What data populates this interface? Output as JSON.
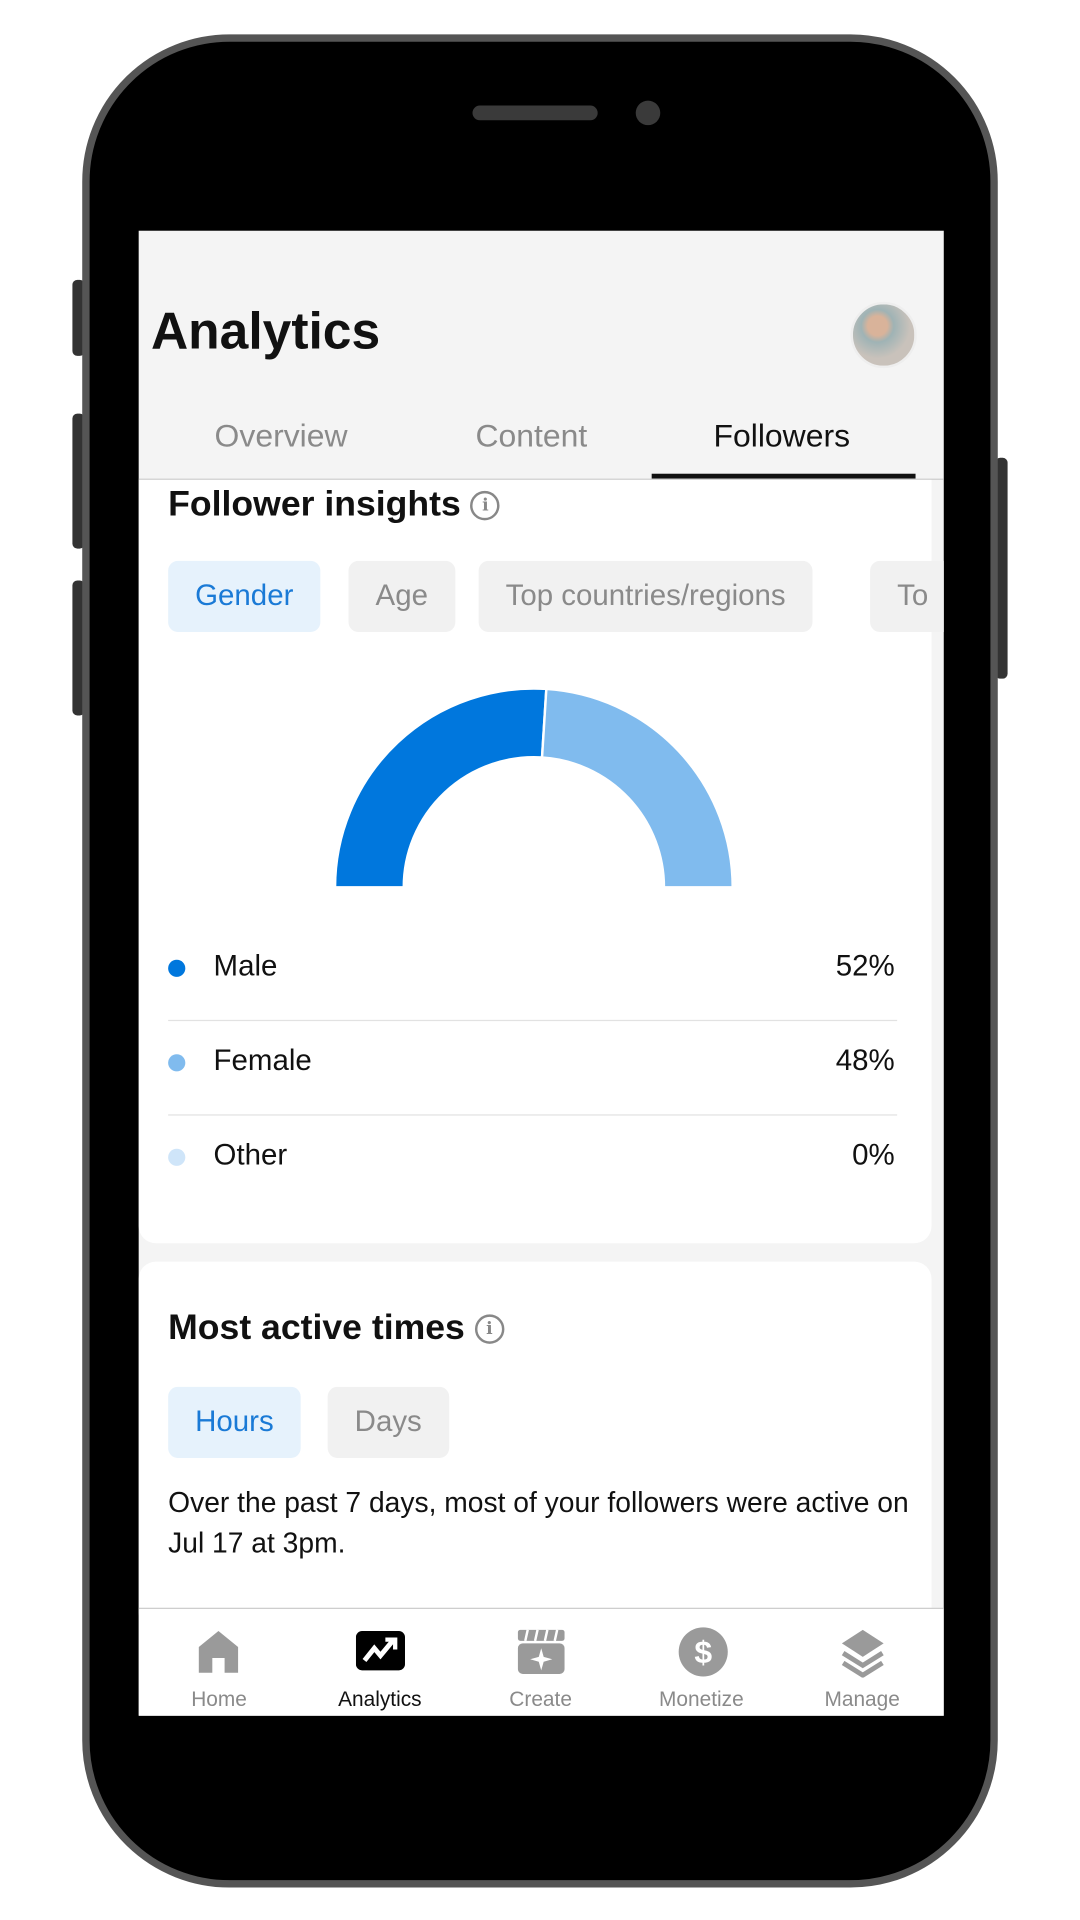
{
  "header": {
    "title": "Analytics"
  },
  "tabs": [
    {
      "label": "Overview"
    },
    {
      "label": "Content"
    },
    {
      "label": "Followers",
      "active": true
    }
  ],
  "follower_insights": {
    "title": "Follower insights",
    "info_icon": "info-icon",
    "chips": [
      {
        "label": "Gender",
        "active": true
      },
      {
        "label": "Age"
      },
      {
        "label": "Top countries/regions"
      },
      {
        "label": "To"
      }
    ],
    "legend": [
      {
        "label": "Male",
        "value": "52%",
        "color": "#0077DD"
      },
      {
        "label": "Female",
        "value": "48%",
        "color": "#80BBEE"
      },
      {
        "label": "Other",
        "value": "0%",
        "color": "#CFE5F9"
      }
    ]
  },
  "chart_data": {
    "type": "pie",
    "style": "half-donut",
    "categories": [
      "Male",
      "Female",
      "Other"
    ],
    "values": [
      52,
      48,
      0
    ],
    "colors": [
      "#0077DD",
      "#80BBEE",
      "#CFE5F9"
    ]
  },
  "most_active": {
    "title": "Most active times",
    "chips": [
      {
        "label": "Hours",
        "active": true
      },
      {
        "label": "Days"
      }
    ],
    "text": "Over the past 7 days, most of your followers were active on Jul 17 at 3pm."
  },
  "bottom_nav": [
    {
      "label": "Home",
      "icon": "home-icon"
    },
    {
      "label": "Analytics",
      "icon": "analytics-icon",
      "active": true
    },
    {
      "label": "Create",
      "icon": "create-icon"
    },
    {
      "label": "Monetize",
      "icon": "dollar-icon"
    },
    {
      "label": "Manage",
      "icon": "layers-icon"
    }
  ]
}
